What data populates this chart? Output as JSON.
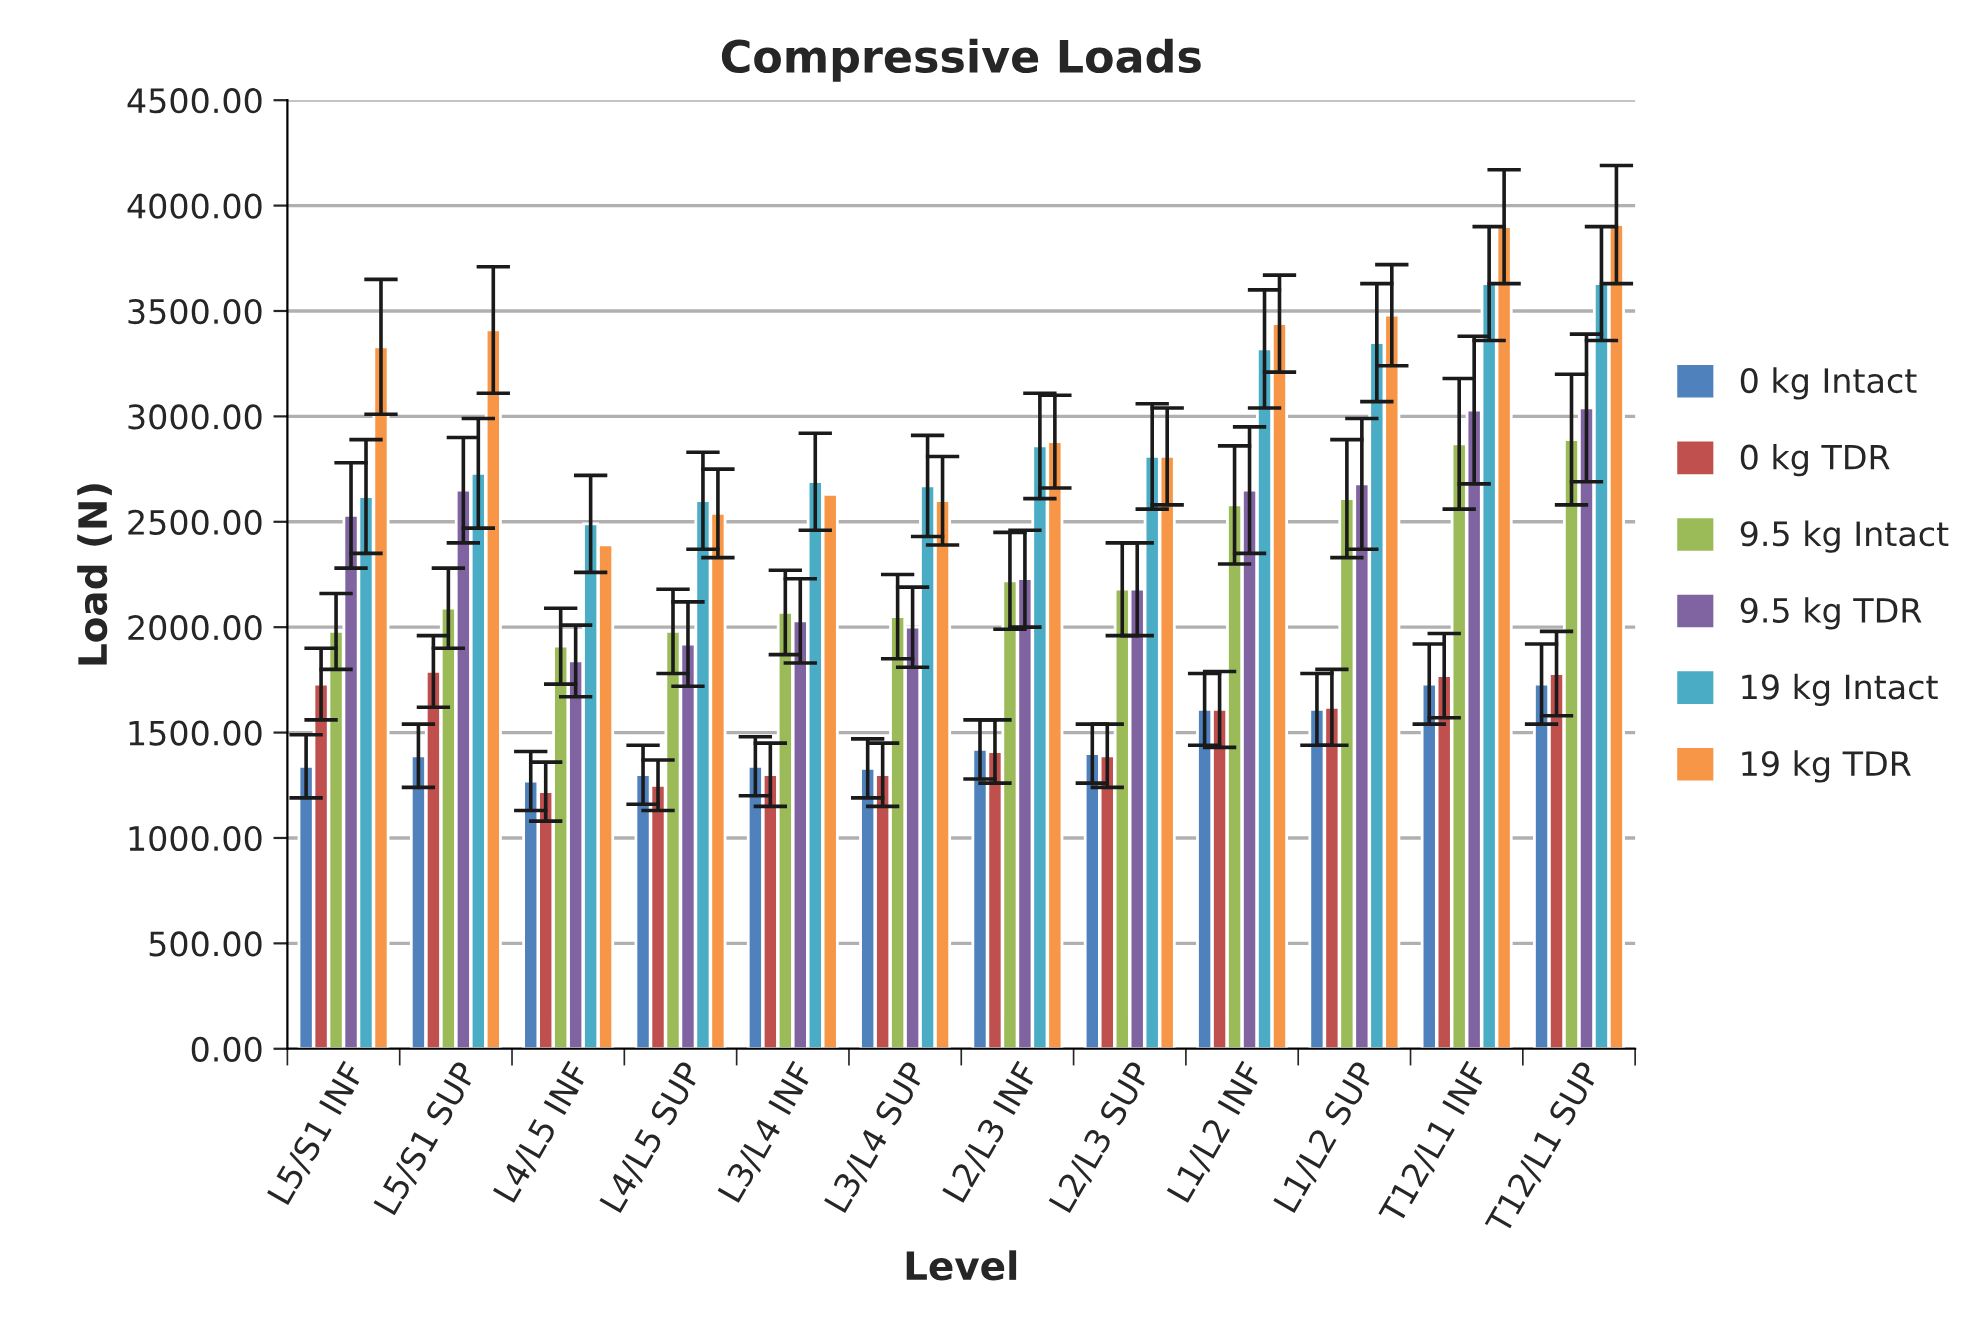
{
  "chart_data": {
    "type": "bar",
    "title": "Compressive Loads",
    "xlabel": "Level",
    "ylabel": "Load (N)",
    "categories": [
      "L5/S1 INF",
      "L5/S1 SUP",
      "L4/L5 INF",
      "L4/L5 SUP",
      "L3/L4 INF",
      "L3/L4 SUP",
      "L2/L3 INF",
      "L2/L3 SUP",
      "L1/L2 INF",
      "L1/L2 SUP",
      "T12/L1 INF",
      "T12/L1 SUP"
    ],
    "series": [
      {
        "name": "0 kg Intact",
        "color": "#4f81bd",
        "values": [
          1340,
          1390,
          1270,
          1300,
          1340,
          1330,
          1420,
          1400,
          1610,
          1610,
          1730,
          1730
        ],
        "errors": [
          150,
          150,
          140,
          140,
          140,
          140,
          140,
          140,
          170,
          170,
          190,
          190
        ]
      },
      {
        "name": "0 kg TDR",
        "color": "#c0504d",
        "values": [
          1730,
          1790,
          1220,
          1250,
          1300,
          1300,
          1410,
          1390,
          1610,
          1620,
          1770,
          1780
        ],
        "errors": [
          170,
          170,
          140,
          120,
          150,
          150,
          150,
          150,
          180,
          180,
          200,
          200
        ]
      },
      {
        "name": "9.5 kg Intact",
        "color": "#9bbb59",
        "values": [
          1980,
          2090,
          1910,
          1980,
          2070,
          2050,
          2220,
          2180,
          2580,
          2610,
          2870,
          2890
        ],
        "errors": [
          180,
          190,
          180,
          200,
          200,
          200,
          230,
          220,
          280,
          280,
          310,
          310
        ]
      },
      {
        "name": "9.5 kg TDR",
        "color": "#8064a2",
        "values": [
          2530,
          2650,
          1840,
          1920,
          2030,
          2000,
          2230,
          2180,
          2650,
          2680,
          3030,
          3040
        ],
        "errors": [
          250,
          250,
          170,
          200,
          200,
          190,
          230,
          220,
          300,
          310,
          350,
          350
        ]
      },
      {
        "name": "19 kg Intact",
        "color": "#4bacc6",
        "values": [
          2620,
          2730,
          2490,
          2600,
          2690,
          2670,
          2860,
          2810,
          3320,
          3350,
          3630,
          3630
        ],
        "errors": [
          270,
          260,
          230,
          230,
          230,
          240,
          250,
          250,
          280,
          280,
          270,
          270
        ]
      },
      {
        "name": "19 kg TDR",
        "color": "#f79646",
        "values": [
          3330,
          3410,
          2390,
          2540,
          2630,
          2600,
          2880,
          2810,
          3440,
          3480,
          3900,
          3910
        ],
        "errors": [
          320,
          300,
          null,
          210,
          null,
          210,
          220,
          230,
          230,
          240,
          270,
          280
        ]
      }
    ],
    "ylim": [
      0,
      4500
    ],
    "yticks": [
      {
        "value": 0,
        "label": "0.00"
      },
      {
        "value": 500,
        "label": "500.00"
      },
      {
        "value": 1000,
        "label": "1000.00"
      },
      {
        "value": 1500,
        "label": "1500.00"
      },
      {
        "value": 2000,
        "label": "2000.00"
      },
      {
        "value": 2500,
        "label": "2500.00"
      },
      {
        "value": 3000,
        "label": "3000.00"
      },
      {
        "value": 3500,
        "label": "3500.00"
      },
      {
        "value": 4000,
        "label": "4000.00"
      },
      {
        "value": 4500,
        "label": "4500.00"
      }
    ],
    "grid": "y",
    "legend": "right"
  }
}
